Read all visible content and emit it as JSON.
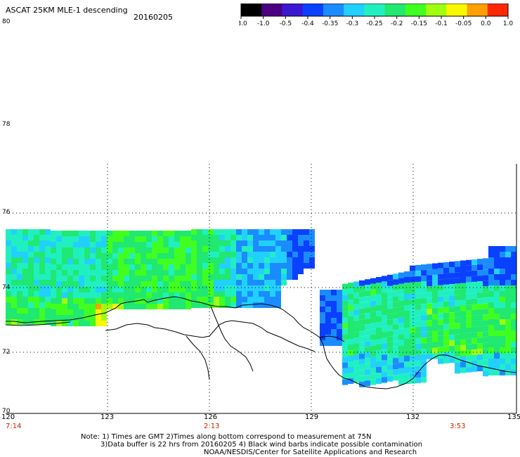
{
  "header": {
    "title": "ASCAT 25KM MLE-1 descending",
    "date": "20160205"
  },
  "colorbar": {
    "labels": [
      "-3.0",
      "-1.0",
      "-0.5",
      "-0.4",
      "-0.35",
      "-0.3",
      "-0.25",
      "-0.2",
      "-0.15",
      "-0.1",
      "-0.05",
      "0.0",
      "1.0"
    ],
    "colors": [
      "#000000",
      "#4a0080",
      "#3a18d0",
      "#0a40ff",
      "#1a8cff",
      "#22d0ff",
      "#20f0c0",
      "#20e870",
      "#40ff20",
      "#a0ff10",
      "#f8f800",
      "#ffa000",
      "#ff2800"
    ]
  },
  "axes": {
    "lat_labels": [
      "80",
      "78",
      "76",
      "74",
      "72",
      "70"
    ],
    "lon_labels": [
      "120",
      "123",
      "126",
      "129",
      "132",
      "135"
    ],
    "time_labels": [
      "7:14",
      "2:13",
      "3:53"
    ]
  },
  "notes": {
    "line1": "Note: 1) Times are GMT 2)Times along bottom correspond to measurement at 75N",
    "line2": "3)Data buffer is 22 hrs from 20160205 4) Black wind barbs indicate possible contamination",
    "line3": "NOAA/NESDIS/Center for Satellite Applications and Research"
  },
  "style": {
    "background": "#ffffff",
    "time_label_color": "#cc2200",
    "coast_color": "#000000"
  }
}
